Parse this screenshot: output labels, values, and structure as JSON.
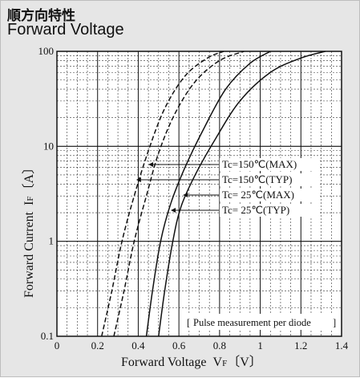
{
  "header": {
    "title_jp": "順方向特性",
    "title_en": "Forward Voltage"
  },
  "chart_data": {
    "type": "line",
    "x_scale": "linear",
    "y_scale": "log",
    "xlim": [
      0,
      1.4
    ],
    "ylim": [
      0.1,
      100
    ],
    "grid": true,
    "xlabel_main": "Forward Voltage",
    "xlabel_symbol": "V",
    "xlabel_sub": "F",
    "xlabel_unit": "〔V〕",
    "ylabel_main": "Forward Current",
    "ylabel_symbol": "I",
    "ylabel_sub": "F",
    "ylabel_unit": "〔A〕",
    "xticks": [
      "0",
      "0.2",
      "0.4",
      "0.6",
      "0.8",
      "1",
      "1.2",
      "1.4"
    ],
    "yticks": [
      "0.1",
      "1",
      "10",
      "100"
    ],
    "note": "Pulse measurement per diode",
    "series": [
      {
        "name": "Tc=150℃(MAX)",
        "style": "dashed",
        "points": [
          [
            0.28,
            0.1
          ],
          [
            0.33,
            0.3
          ],
          [
            0.38,
            1.0
          ],
          [
            0.44,
            3.0
          ],
          [
            0.5,
            8.5
          ],
          [
            0.58,
            22
          ],
          [
            0.68,
            48
          ],
          [
            0.8,
            80
          ],
          [
            0.92,
            100
          ]
        ]
      },
      {
        "name": "Tc=150℃(TYP)",
        "style": "dashed",
        "points": [
          [
            0.22,
            0.1
          ],
          [
            0.27,
            0.3
          ],
          [
            0.32,
            1.0
          ],
          [
            0.38,
            3.0
          ],
          [
            0.45,
            9.0
          ],
          [
            0.53,
            25
          ],
          [
            0.63,
            55
          ],
          [
            0.74,
            85
          ],
          [
            0.82,
            100
          ]
        ]
      },
      {
        "name": "Tc= 25℃(MAX)",
        "style": "solid",
        "points": [
          [
            0.5,
            0.1
          ],
          [
            0.53,
            0.3
          ],
          [
            0.57,
            1.0
          ],
          [
            0.61,
            2.3
          ],
          [
            0.68,
            5.0
          ],
          [
            0.78,
            12
          ],
          [
            0.9,
            30
          ],
          [
            1.05,
            60
          ],
          [
            1.2,
            85
          ],
          [
            1.32,
            100
          ]
        ]
      },
      {
        "name": "Tc= 25℃(TYP)",
        "style": "solid",
        "points": [
          [
            0.44,
            0.1
          ],
          [
            0.47,
            0.3
          ],
          [
            0.51,
            1.0
          ],
          [
            0.56,
            2.5
          ],
          [
            0.63,
            6.0
          ],
          [
            0.72,
            15
          ],
          [
            0.83,
            40
          ],
          [
            0.95,
            75
          ],
          [
            1.05,
            100
          ]
        ]
      }
    ]
  }
}
